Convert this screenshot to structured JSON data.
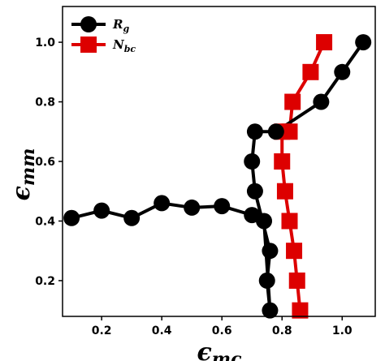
{
  "chart_data": {
    "type": "line",
    "xlabel": "ϵ",
    "xlabel_sub": "mc",
    "ylabel": "ϵ",
    "ylabel_sub": "mm",
    "xlim": [
      0.07,
      1.11
    ],
    "ylim": [
      0.08,
      1.12
    ],
    "xticks": [
      "0.2",
      "0.4",
      "0.6",
      "0.8",
      "1.0"
    ],
    "xtick_values": [
      0.2,
      0.4,
      0.6,
      0.8,
      1.0
    ],
    "yticks": [
      "0.2",
      "0.4",
      "0.6",
      "0.8",
      "1.0"
    ],
    "ytick_values": [
      0.2,
      0.4,
      0.6,
      0.8,
      1.0
    ],
    "grid": false,
    "legend_position": "top-left",
    "series": [
      {
        "name": "R",
        "name_sub": "g",
        "color": "#000000",
        "marker": "circle",
        "x": [
          0.1,
          0.2,
          0.3,
          0.4,
          0.5,
          0.6,
          0.7,
          0.74,
          0.76,
          0.75,
          0.76,
          0.71,
          0.7,
          0.71,
          0.78,
          0.93,
          1.0,
          1.07
        ],
        "y": [
          0.41,
          0.435,
          0.41,
          0.46,
          0.445,
          0.45,
          0.42,
          0.4,
          0.1,
          0.2,
          0.3,
          0.5,
          0.6,
          0.7,
          0.7,
          0.8,
          0.9,
          1.0
        ]
      },
      {
        "name": "N",
        "name_sub": "bc",
        "color": "#dd0000",
        "marker": "square",
        "x": [
          0.86,
          0.85,
          0.84,
          0.825,
          0.81,
          0.8,
          0.8,
          0.825,
          0.835,
          0.895,
          0.94
        ],
        "y": [
          0.1,
          0.2,
          0.3,
          0.4,
          0.5,
          0.6,
          0.7,
          0.7,
          0.8,
          0.9,
          1.0
        ]
      }
    ]
  }
}
